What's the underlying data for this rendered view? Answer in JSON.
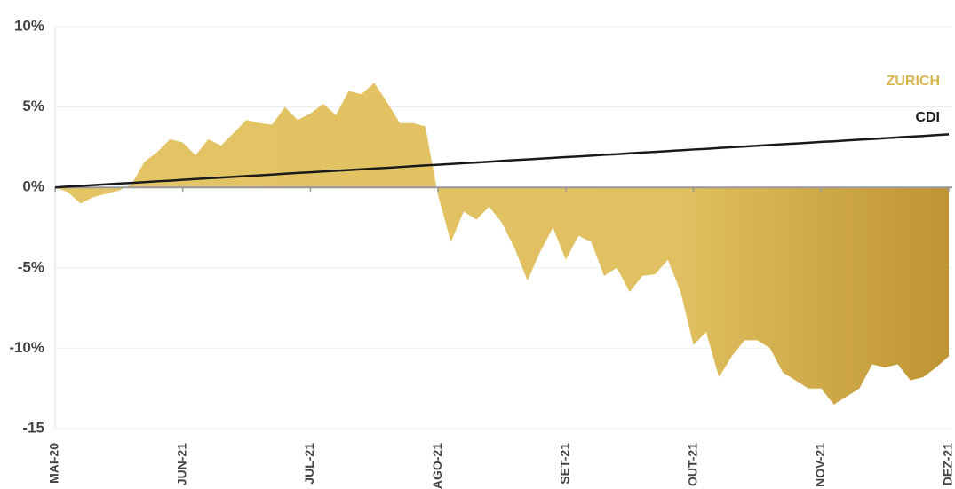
{
  "chart_data": {
    "type": "area",
    "categories": [
      "MAI-20",
      null,
      null,
      null,
      null,
      null,
      null,
      null,
      null,
      null,
      "JUN-21",
      null,
      null,
      null,
      null,
      null,
      null,
      null,
      null,
      null,
      "JUL-21",
      null,
      null,
      null,
      null,
      null,
      null,
      null,
      null,
      null,
      "AGO-21",
      null,
      null,
      null,
      null,
      null,
      null,
      null,
      null,
      null,
      "SET-21",
      null,
      null,
      null,
      null,
      null,
      null,
      null,
      null,
      null,
      "OUT-21",
      null,
      null,
      null,
      null,
      null,
      null,
      null,
      null,
      null,
      "NOV-21",
      null,
      null,
      null,
      null,
      null,
      null,
      null,
      null,
      null,
      "DEZ-21"
    ],
    "series": [
      {
        "name": "ZURICH",
        "color": "#d9b54e",
        "values": [
          0,
          -0.3,
          -1.0,
          -0.6,
          -0.4,
          -0.2,
          0.2,
          1.6,
          2.2,
          3.0,
          2.8,
          2.0,
          3.0,
          2.6,
          3.4,
          4.2,
          4.0,
          3.9,
          5.0,
          4.2,
          4.6,
          5.2,
          4.5,
          6.0,
          5.8,
          6.5,
          5.3,
          4.0,
          4.0,
          3.8,
          -0.5,
          -3.4,
          -1.5,
          -2.0,
          -1.2,
          -2.2,
          -3.8,
          -5.8,
          -4.0,
          -2.5,
          -4.5,
          -3.0,
          -3.4,
          -5.5,
          -5.0,
          -6.5,
          -5.5,
          -5.4,
          -4.5,
          -6.5,
          -9.8,
          -9.0,
          -11.8,
          -10.5,
          -9.5,
          -9.5,
          -10.0,
          -11.5,
          -12.0,
          -12.5,
          -12.5,
          -13.5,
          -13.0,
          -12.5,
          -11.0,
          -11.2,
          -11.0,
          -12.0,
          -11.8,
          -11.2,
          -10.5
        ]
      },
      {
        "name": "CDI",
        "color": "#1a1a1a",
        "values": [
          0,
          0.05,
          0.09,
          0.14,
          0.19,
          0.24,
          0.28,
          0.33,
          0.38,
          0.42,
          0.47,
          0.52,
          0.57,
          0.61,
          0.66,
          0.71,
          0.75,
          0.8,
          0.85,
          0.9,
          0.94,
          0.99,
          1.04,
          1.08,
          1.13,
          1.18,
          1.22,
          1.27,
          1.32,
          1.37,
          1.41,
          1.46,
          1.51,
          1.55,
          1.6,
          1.65,
          1.7,
          1.74,
          1.79,
          1.84,
          1.89,
          1.93,
          1.98,
          2.03,
          2.07,
          2.12,
          2.17,
          2.21,
          2.26,
          2.31,
          2.36,
          2.4,
          2.45,
          2.5,
          2.54,
          2.59,
          2.64,
          2.69,
          2.73,
          2.78,
          2.83,
          2.87,
          2.92,
          2.97,
          3.01,
          3.06,
          3.11,
          3.16,
          3.2,
          3.25,
          3.3
        ]
      }
    ],
    "ylim": [
      -15,
      10
    ],
    "yticks": [
      {
        "value": -15,
        "label": "-15"
      },
      {
        "value": -10,
        "label": "-10%"
      },
      {
        "value": -5,
        "label": "-5%"
      },
      {
        "value": 0,
        "label": "0%"
      },
      {
        "value": 5,
        "label": "5%"
      },
      {
        "value": 10,
        "label": "10%"
      }
    ],
    "grid": true
  }
}
